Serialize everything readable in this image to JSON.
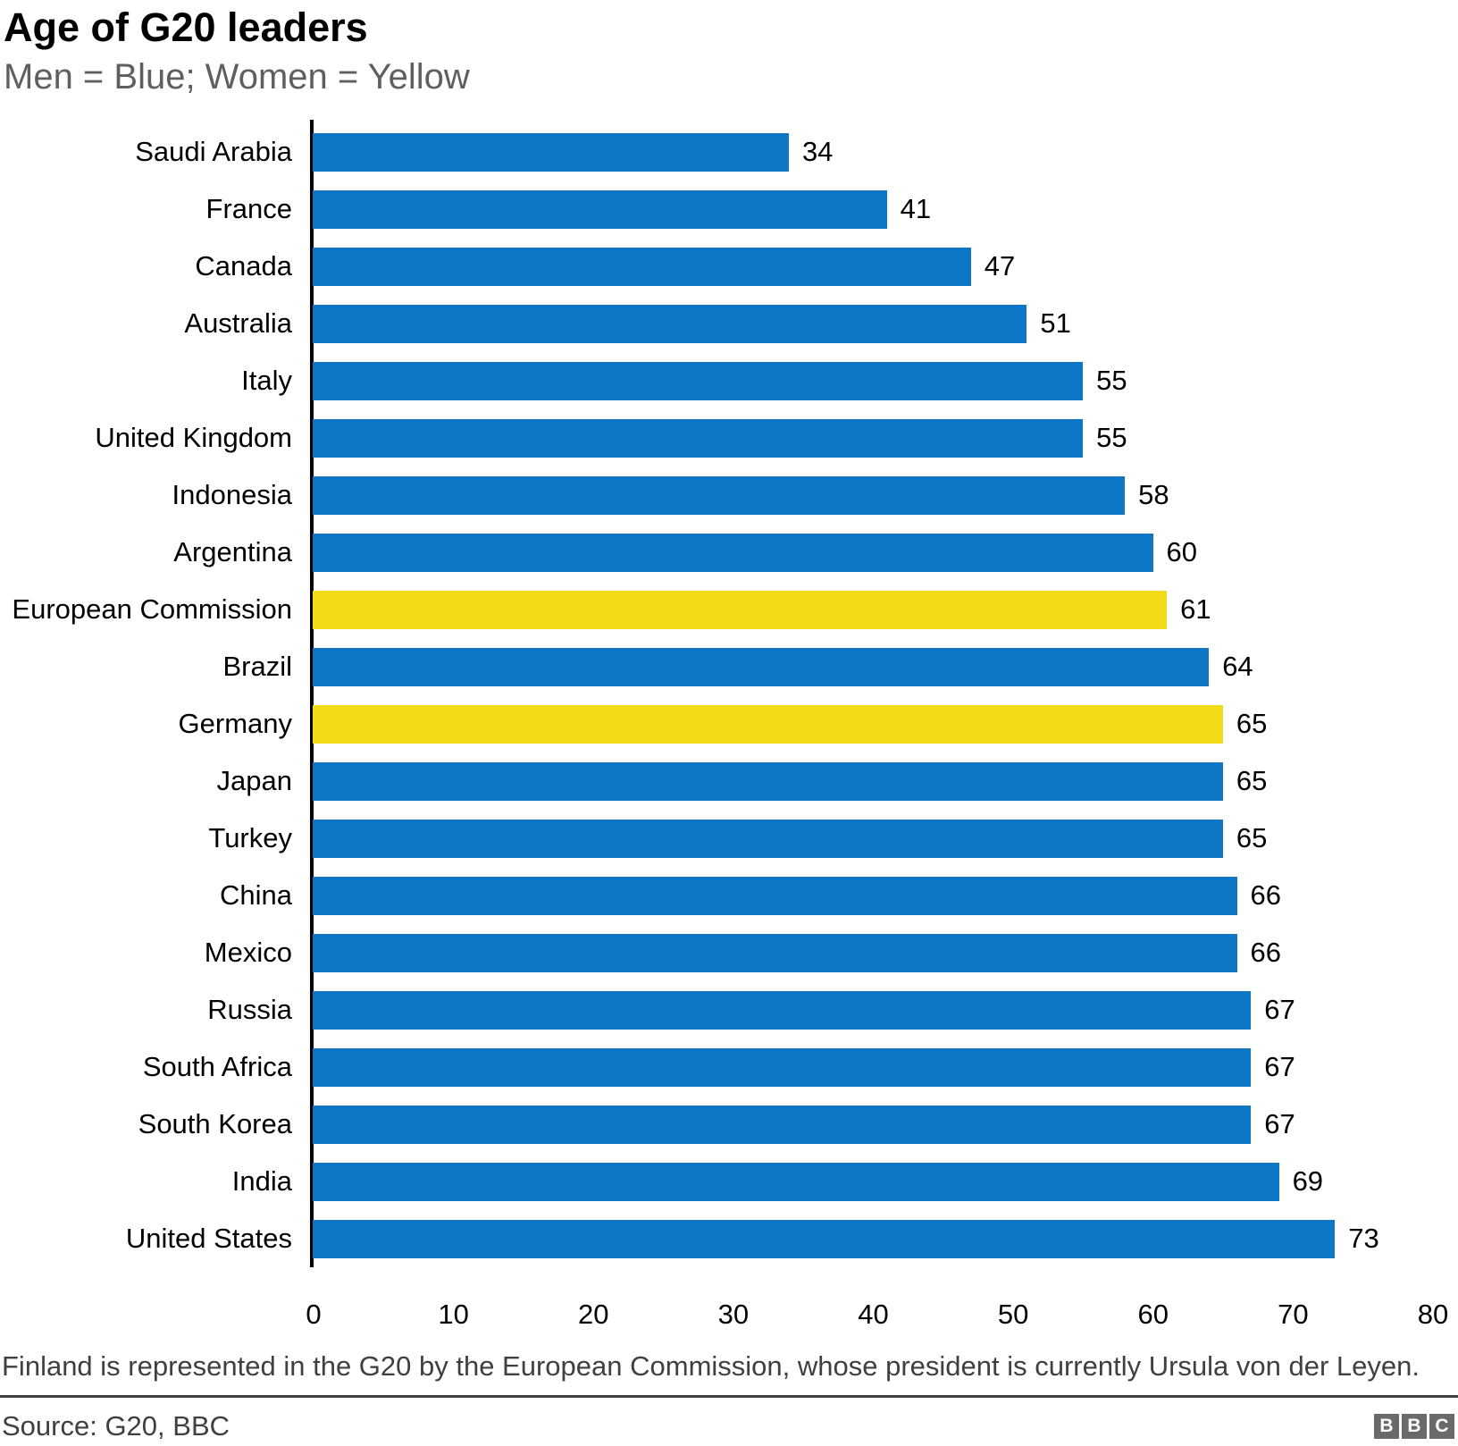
{
  "header": {
    "title": "Age of G20 leaders",
    "subtitle": "Men = Blue; Women = Yellow"
  },
  "chart_data": {
    "type": "bar",
    "orientation": "horizontal",
    "title": "Age of G20 leaders",
    "legend": "Men = Blue; Women = Yellow",
    "categories": [
      "Saudi Arabia",
      "France",
      "Canada",
      "Australia",
      "Italy",
      "United Kingdom",
      "Indonesia",
      "Argentina",
      "European Commission",
      "Brazil",
      "Germany",
      "Japan",
      "Turkey",
      "China",
      "Mexico",
      "Russia",
      "South Africa",
      "South Korea",
      "India",
      "United States"
    ],
    "values": [
      34,
      41,
      47,
      51,
      55,
      55,
      58,
      60,
      61,
      64,
      65,
      65,
      65,
      66,
      66,
      67,
      67,
      67,
      69,
      73
    ],
    "genders": [
      "men",
      "men",
      "men",
      "men",
      "men",
      "men",
      "men",
      "men",
      "women",
      "men",
      "women",
      "men",
      "men",
      "men",
      "men",
      "men",
      "men",
      "men",
      "men",
      "men"
    ],
    "series_colors": {
      "men": "#0d76c6",
      "women": "#f2dc19"
    },
    "xlim": [
      0,
      80
    ],
    "xticks": [
      0,
      10,
      20,
      30,
      40,
      50,
      60,
      70,
      80
    ],
    "grid": false,
    "value_labels": true,
    "axis_color": "#000000"
  },
  "footer": {
    "footnote": "Finland is represented in the G20 by the European Commission, whose president is currently Ursula von der Leyen.",
    "source": "Source: G20, BBC",
    "logo_letters": [
      "B",
      "B",
      "C"
    ]
  }
}
